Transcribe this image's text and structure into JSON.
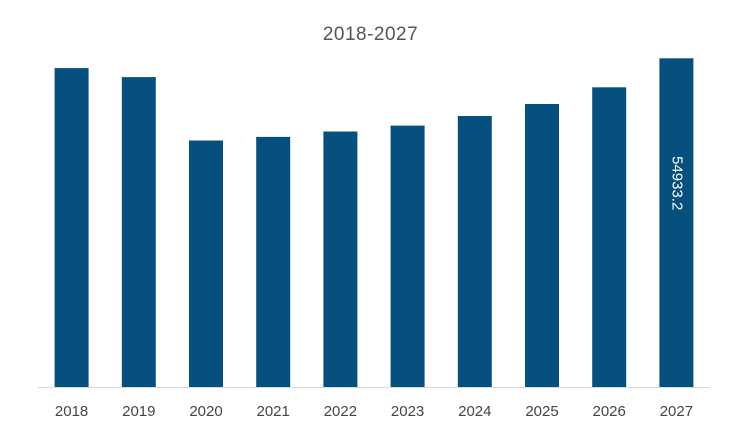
{
  "chart_data": {
    "type": "bar",
    "title": "2018-2027",
    "xlabel": "",
    "ylabel": "",
    "categories": [
      "2018",
      "2019",
      "2020",
      "2021",
      "2022",
      "2023",
      "2024",
      "2025",
      "2026",
      "2027"
    ],
    "values": [
      53300,
      51800,
      41200,
      41800,
      42700,
      43700,
      45300,
      47300,
      50100,
      54933.2
    ],
    "data_labels": [
      {
        "category": "2027",
        "text": "54933.2"
      }
    ],
    "ylim": [
      0,
      58000
    ],
    "grid": false,
    "colors": {
      "bar": "#06507f",
      "axis": "#d9d9d9"
    }
  }
}
